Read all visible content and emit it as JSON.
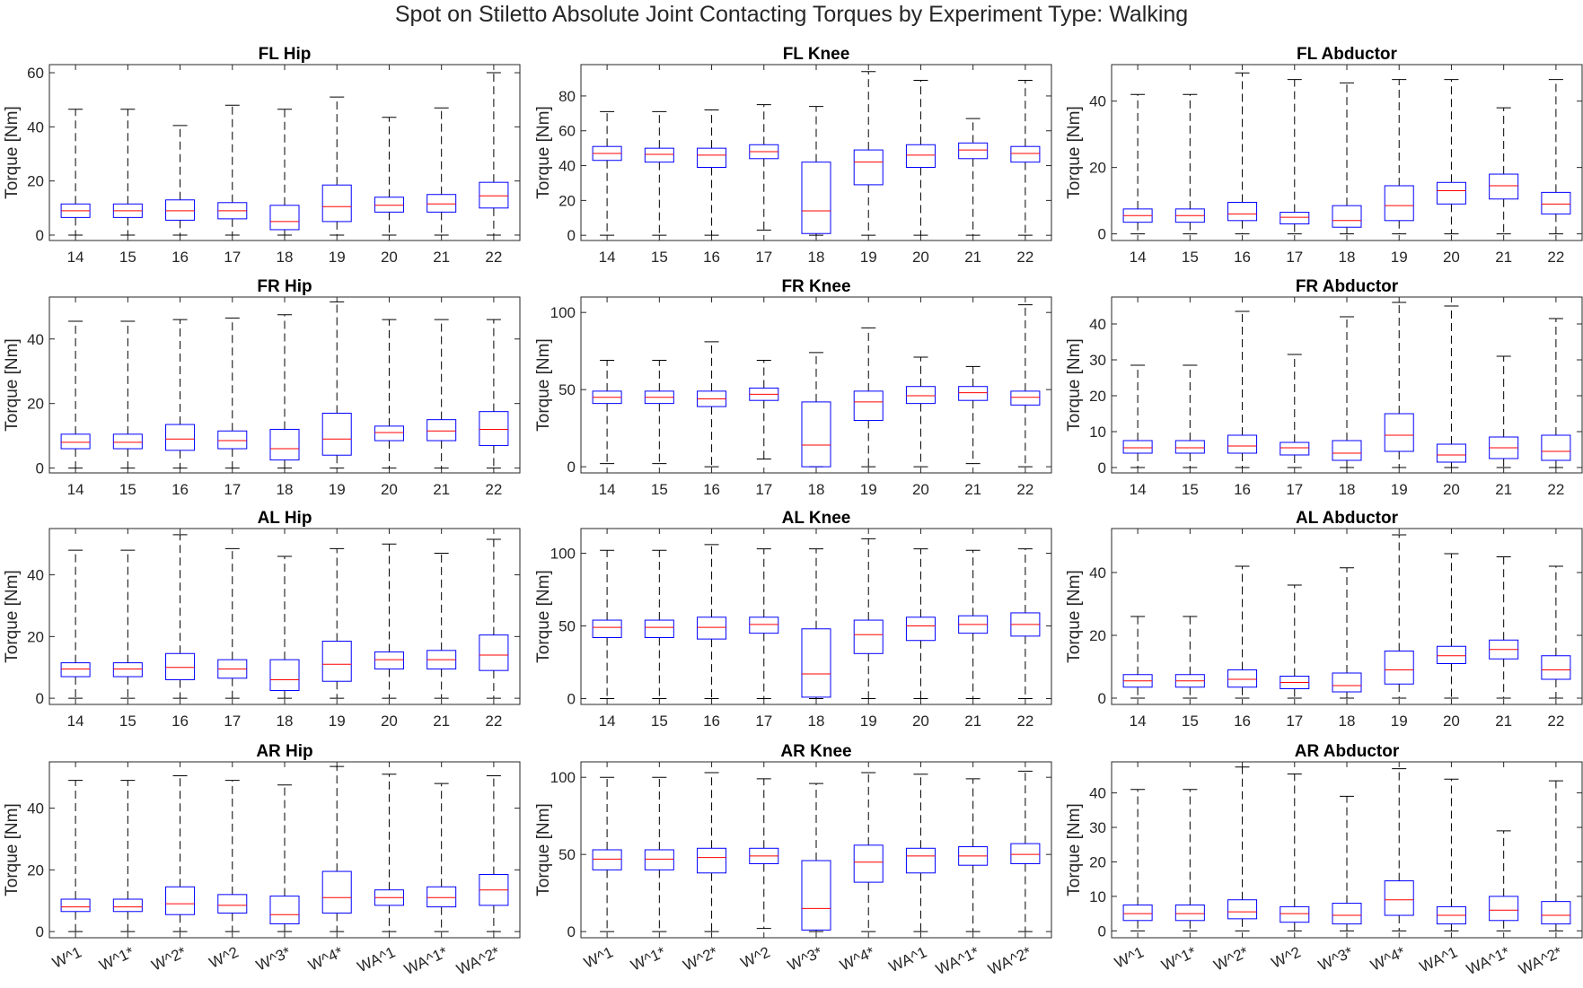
{
  "title": "Spot on Stiletto Absolute Joint Contacting Torques by Experiment Type: Walking",
  "colors": {
    "box": "#0000ff",
    "median": "#ff0000",
    "whisker": "#000000",
    "axis": "#262626"
  },
  "y_label": "Torque [Nm]",
  "chart_data": [
    {
      "type": "box",
      "title": "FL Hip",
      "ylabel": "Torque [Nm]",
      "categories": [
        "14",
        "15",
        "16",
        "17",
        "18",
        "19",
        "20",
        "21",
        "22"
      ],
      "ylim": [
        -2,
        63
      ],
      "yticks": [
        0,
        20,
        40,
        60
      ],
      "boxes": [
        {
          "min": 0,
          "q1": 6.5,
          "median": 9,
          "q3": 11.5,
          "max": 46.5
        },
        {
          "min": 0,
          "q1": 6.5,
          "median": 9,
          "q3": 11.5,
          "max": 46.5
        },
        {
          "min": 0,
          "q1": 5.5,
          "median": 9,
          "q3": 13,
          "max": 40.5
        },
        {
          "min": 0,
          "q1": 6,
          "median": 9,
          "q3": 12,
          "max": 48
        },
        {
          "min": 0,
          "q1": 2,
          "median": 5,
          "q3": 11,
          "max": 46.5
        },
        {
          "min": 0,
          "q1": 5,
          "median": 10.5,
          "q3": 18.5,
          "max": 51
        },
        {
          "min": 0,
          "q1": 8.5,
          "median": 11,
          "q3": 14,
          "max": 43.5
        },
        {
          "min": 0,
          "q1": 8.5,
          "median": 11.5,
          "q3": 15,
          "max": 47
        },
        {
          "min": 0,
          "q1": 10,
          "median": 14.5,
          "q3": 19.5,
          "max": 60
        }
      ]
    },
    {
      "type": "box",
      "title": "FL Knee",
      "ylabel": "Torque [Nm]",
      "categories": [
        "14",
        "15",
        "16",
        "17",
        "18",
        "19",
        "20",
        "21",
        "22"
      ],
      "ylim": [
        -3,
        98
      ],
      "yticks": [
        0,
        20,
        40,
        60,
        80
      ],
      "boxes": [
        {
          "min": 0,
          "q1": 43,
          "median": 47,
          "q3": 51,
          "max": 71
        },
        {
          "min": 0,
          "q1": 42,
          "median": 46.5,
          "q3": 50,
          "max": 71
        },
        {
          "min": 0,
          "q1": 39,
          "median": 46,
          "q3": 50,
          "max": 72
        },
        {
          "min": 3,
          "q1": 44,
          "median": 48,
          "q3": 52,
          "max": 75
        },
        {
          "min": 0,
          "q1": 1,
          "median": 14,
          "q3": 42,
          "max": 74
        },
        {
          "min": 0,
          "q1": 29,
          "median": 42,
          "q3": 49,
          "max": 94
        },
        {
          "min": 0,
          "q1": 39,
          "median": 46,
          "q3": 52,
          "max": 89
        },
        {
          "min": 0,
          "q1": 44,
          "median": 49,
          "q3": 53,
          "max": 67
        },
        {
          "min": 0,
          "q1": 42,
          "median": 47,
          "q3": 51,
          "max": 89
        }
      ]
    },
    {
      "type": "box",
      "title": "FL Abductor",
      "ylabel": "Torque [Nm]",
      "categories": [
        "14",
        "15",
        "16",
        "17",
        "18",
        "19",
        "20",
        "21",
        "22"
      ],
      "ylim": [
        -2,
        51
      ],
      "yticks": [
        0,
        20,
        40
      ],
      "boxes": [
        {
          "min": 0,
          "q1": 3.5,
          "median": 5.5,
          "q3": 7.5,
          "max": 42
        },
        {
          "min": 0,
          "q1": 3.5,
          "median": 5.5,
          "q3": 7.5,
          "max": 42
        },
        {
          "min": 0,
          "q1": 4,
          "median": 6,
          "q3": 9.5,
          "max": 48.5
        },
        {
          "min": 0,
          "q1": 3,
          "median": 5,
          "q3": 6.5,
          "max": 46.5
        },
        {
          "min": 0,
          "q1": 2,
          "median": 4,
          "q3": 8.5,
          "max": 45.5
        },
        {
          "min": 0,
          "q1": 4,
          "median": 8.5,
          "q3": 14.5,
          "max": 46.5
        },
        {
          "min": 0,
          "q1": 9,
          "median": 13,
          "q3": 15.5,
          "max": 46.5
        },
        {
          "min": 0,
          "q1": 10.5,
          "median": 14.5,
          "q3": 18,
          "max": 38
        },
        {
          "min": 0,
          "q1": 6,
          "median": 9,
          "q3": 12.5,
          "max": 46.5
        }
      ]
    },
    {
      "type": "box",
      "title": "FR Hip",
      "ylabel": "Torque [Nm]",
      "categories": [
        "14",
        "15",
        "16",
        "17",
        "18",
        "19",
        "20",
        "21",
        "22"
      ],
      "ylim": [
        -1.5,
        53
      ],
      "yticks": [
        0,
        20,
        40
      ],
      "boxes": [
        {
          "min": 0,
          "q1": 6,
          "median": 8,
          "q3": 10.5,
          "max": 45.5
        },
        {
          "min": 0,
          "q1": 6,
          "median": 8,
          "q3": 10.5,
          "max": 45.5
        },
        {
          "min": 0,
          "q1": 5.5,
          "median": 9,
          "q3": 13.5,
          "max": 46
        },
        {
          "min": 0,
          "q1": 6,
          "median": 8.5,
          "q3": 11.5,
          "max": 46.5
        },
        {
          "min": 0,
          "q1": 2.5,
          "median": 6,
          "q3": 12,
          "max": 47.5
        },
        {
          "min": 0,
          "q1": 4,
          "median": 9,
          "q3": 17,
          "max": 51.5
        },
        {
          "min": 0,
          "q1": 8.5,
          "median": 11,
          "q3": 13,
          "max": 46
        },
        {
          "min": 0,
          "q1": 8.5,
          "median": 11.5,
          "q3": 15,
          "max": 46
        },
        {
          "min": 0,
          "q1": 7,
          "median": 12,
          "q3": 17.5,
          "max": 46
        }
      ]
    },
    {
      "type": "box",
      "title": "FR Knee",
      "ylabel": "Torque [Nm]",
      "categories": [
        "14",
        "15",
        "16",
        "17",
        "18",
        "19",
        "20",
        "21",
        "22"
      ],
      "ylim": [
        -4,
        110
      ],
      "yticks": [
        0,
        50,
        100
      ],
      "boxes": [
        {
          "min": 2,
          "q1": 41,
          "median": 45,
          "q3": 49,
          "max": 69
        },
        {
          "min": 2,
          "q1": 41,
          "median": 45,
          "q3": 49,
          "max": 69
        },
        {
          "min": 0,
          "q1": 39,
          "median": 44,
          "q3": 49,
          "max": 81
        },
        {
          "min": 5,
          "q1": 43,
          "median": 47,
          "q3": 51,
          "max": 69
        },
        {
          "min": 0,
          "q1": 0,
          "median": 14,
          "q3": 42,
          "max": 74
        },
        {
          "min": 0,
          "q1": 30,
          "median": 42,
          "q3": 49,
          "max": 90
        },
        {
          "min": 0,
          "q1": 41,
          "median": 46,
          "q3": 52,
          "max": 71
        },
        {
          "min": 2,
          "q1": 43,
          "median": 48,
          "q3": 52,
          "max": 65
        },
        {
          "min": 0,
          "q1": 40,
          "median": 45,
          "q3": 49,
          "max": 105
        }
      ]
    },
    {
      "type": "box",
      "title": "FR Abductor",
      "ylabel": "Torque [Nm]",
      "categories": [
        "14",
        "15",
        "16",
        "17",
        "18",
        "19",
        "20",
        "21",
        "22"
      ],
      "ylim": [
        -1.5,
        47.5
      ],
      "yticks": [
        0,
        10,
        20,
        30,
        40
      ],
      "boxes": [
        {
          "min": 0,
          "q1": 4,
          "median": 5.5,
          "q3": 7.5,
          "max": 28.5
        },
        {
          "min": 0,
          "q1": 4,
          "median": 5.5,
          "q3": 7.5,
          "max": 28.5
        },
        {
          "min": 0,
          "q1": 4,
          "median": 6,
          "q3": 9,
          "max": 43.5
        },
        {
          "min": 0,
          "q1": 3.5,
          "median": 5.5,
          "q3": 7,
          "max": 31.5
        },
        {
          "min": 0,
          "q1": 2,
          "median": 4,
          "q3": 7.5,
          "max": 42
        },
        {
          "min": 0,
          "q1": 4.5,
          "median": 9,
          "q3": 15,
          "max": 46
        },
        {
          "min": 0,
          "q1": 1.5,
          "median": 3.5,
          "q3": 6.5,
          "max": 45
        },
        {
          "min": 0,
          "q1": 2.5,
          "median": 5.5,
          "q3": 8.5,
          "max": 31
        },
        {
          "min": 0,
          "q1": 2,
          "median": 4.5,
          "q3": 9,
          "max": 41.5
        }
      ]
    },
    {
      "type": "box",
      "title": "AL Hip",
      "ylabel": "Torque [Nm]",
      "categories": [
        "14",
        "15",
        "16",
        "17",
        "18",
        "19",
        "20",
        "21",
        "22"
      ],
      "ylim": [
        -2,
        55
      ],
      "yticks": [
        0,
        20,
        40
      ],
      "boxes": [
        {
          "min": 0,
          "q1": 7,
          "median": 9.5,
          "q3": 11.5,
          "max": 48
        },
        {
          "min": 0,
          "q1": 7,
          "median": 9.5,
          "q3": 11.5,
          "max": 48
        },
        {
          "min": 0,
          "q1": 6,
          "median": 10,
          "q3": 14.5,
          "max": 53
        },
        {
          "min": 0,
          "q1": 6.5,
          "median": 9.5,
          "q3": 12.5,
          "max": 48.5
        },
        {
          "min": 0,
          "q1": 2.5,
          "median": 6,
          "q3": 12.5,
          "max": 46
        },
        {
          "min": 0,
          "q1": 5.5,
          "median": 11,
          "q3": 18.5,
          "max": 48.5
        },
        {
          "min": 0,
          "q1": 9.5,
          "median": 12.5,
          "q3": 15,
          "max": 50
        },
        {
          "min": 0,
          "q1": 9.5,
          "median": 12.5,
          "q3": 15.5,
          "max": 47
        },
        {
          "min": 0,
          "q1": 9,
          "median": 14,
          "q3": 20.5,
          "max": 51.5
        }
      ]
    },
    {
      "type": "box",
      "title": "AL Knee",
      "ylabel": "Torque [Nm]",
      "categories": [
        "14",
        "15",
        "16",
        "17",
        "18",
        "19",
        "20",
        "21",
        "22"
      ],
      "ylim": [
        -4,
        117
      ],
      "yticks": [
        0,
        50,
        100
      ],
      "boxes": [
        {
          "min": 0,
          "q1": 42,
          "median": 49,
          "q3": 54,
          "max": 102
        },
        {
          "min": 0,
          "q1": 42,
          "median": 49,
          "q3": 54,
          "max": 102
        },
        {
          "min": 0,
          "q1": 41,
          "median": 49,
          "q3": 56,
          "max": 106
        },
        {
          "min": 0,
          "q1": 45,
          "median": 51,
          "q3": 56,
          "max": 103
        },
        {
          "min": 0,
          "q1": 1,
          "median": 17,
          "q3": 48,
          "max": 103
        },
        {
          "min": 0,
          "q1": 31,
          "median": 44,
          "q3": 54,
          "max": 110
        },
        {
          "min": 0,
          "q1": 40,
          "median": 50,
          "q3": 56,
          "max": 103
        },
        {
          "min": 0,
          "q1": 45,
          "median": 51,
          "q3": 57,
          "max": 102
        },
        {
          "min": 0,
          "q1": 43,
          "median": 51,
          "q3": 59,
          "max": 103
        }
      ]
    },
    {
      "type": "box",
      "title": "AL Abductor",
      "ylabel": "Torque [Nm]",
      "categories": [
        "14",
        "15",
        "16",
        "17",
        "18",
        "19",
        "20",
        "21",
        "22"
      ],
      "ylim": [
        -2,
        54
      ],
      "yticks": [
        0,
        20,
        40
      ],
      "boxes": [
        {
          "min": 0,
          "q1": 3.5,
          "median": 5.5,
          "q3": 7.5,
          "max": 26
        },
        {
          "min": 0,
          "q1": 3.5,
          "median": 5.5,
          "q3": 7.5,
          "max": 26
        },
        {
          "min": 0,
          "q1": 3.5,
          "median": 6,
          "q3": 9,
          "max": 42
        },
        {
          "min": 0,
          "q1": 3,
          "median": 5,
          "q3": 7,
          "max": 36
        },
        {
          "min": 0,
          "q1": 2,
          "median": 4,
          "q3": 8,
          "max": 41.5
        },
        {
          "min": 0,
          "q1": 4.5,
          "median": 9,
          "q3": 15,
          "max": 52
        },
        {
          "min": 0,
          "q1": 11,
          "median": 13.5,
          "q3": 16.5,
          "max": 46
        },
        {
          "min": 0,
          "q1": 12.5,
          "median": 15.5,
          "q3": 18.5,
          "max": 45
        },
        {
          "min": 0,
          "q1": 6,
          "median": 9,
          "q3": 13.5,
          "max": 42
        }
      ]
    },
    {
      "type": "box",
      "title": "AR Hip",
      "ylabel": "Torque [Nm]",
      "categories": [
        "W^1",
        "W^1*",
        "W^2*",
        "W^2",
        "W^3*",
        "W^4*",
        "WA^1",
        "WA^1*",
        "WA^2*"
      ],
      "ylim": [
        -2,
        55
      ],
      "yticks": [
        0,
        20,
        40
      ],
      "boxes": [
        {
          "min": 0,
          "q1": 6.5,
          "median": 8,
          "q3": 10.5,
          "max": 49
        },
        {
          "min": 0,
          "q1": 6.5,
          "median": 8,
          "q3": 10.5,
          "max": 49
        },
        {
          "min": 0,
          "q1": 5.5,
          "median": 9,
          "q3": 14.5,
          "max": 50.5
        },
        {
          "min": 0,
          "q1": 6,
          "median": 8.5,
          "q3": 12,
          "max": 49
        },
        {
          "min": 0,
          "q1": 2.5,
          "median": 5.5,
          "q3": 11.5,
          "max": 47.5
        },
        {
          "min": 0,
          "q1": 6,
          "median": 11,
          "q3": 19.5,
          "max": 53.5
        },
        {
          "min": 0,
          "q1": 8.5,
          "median": 11,
          "q3": 13.5,
          "max": 51
        },
        {
          "min": 0,
          "q1": 8,
          "median": 11,
          "q3": 14.5,
          "max": 48
        },
        {
          "min": 0,
          "q1": 8.5,
          "median": 13.5,
          "q3": 18.5,
          "max": 50.5
        }
      ]
    },
    {
      "type": "box",
      "title": "AR Knee",
      "ylabel": "Torque [Nm]",
      "categories": [
        "W^1",
        "W^1*",
        "W^2*",
        "W^2",
        "W^3*",
        "W^4*",
        "WA^1",
        "WA^1*",
        "WA^2*"
      ],
      "ylim": [
        -4,
        110
      ],
      "yticks": [
        0,
        50,
        100
      ],
      "boxes": [
        {
          "min": 0,
          "q1": 40,
          "median": 47,
          "q3": 53,
          "max": 100
        },
        {
          "min": 0,
          "q1": 40,
          "median": 47,
          "q3": 53,
          "max": 100
        },
        {
          "min": 0,
          "q1": 38,
          "median": 48,
          "q3": 54,
          "max": 103
        },
        {
          "min": 2,
          "q1": 44,
          "median": 49,
          "q3": 54,
          "max": 99
        },
        {
          "min": 0,
          "q1": 1,
          "median": 15,
          "q3": 46,
          "max": 96
        },
        {
          "min": 0,
          "q1": 32,
          "median": 45,
          "q3": 56,
          "max": 103
        },
        {
          "min": 0,
          "q1": 38,
          "median": 49,
          "q3": 54,
          "max": 102
        },
        {
          "min": 0,
          "q1": 43,
          "median": 49,
          "q3": 55,
          "max": 99
        },
        {
          "min": 0,
          "q1": 44,
          "median": 50,
          "q3": 57,
          "max": 104
        }
      ]
    },
    {
      "type": "box",
      "title": "AR Abductor",
      "ylabel": "Torque [Nm]",
      "categories": [
        "W^1",
        "W^1*",
        "W^2*",
        "W^2",
        "W^3*",
        "W^4*",
        "WA^1",
        "WA^1*",
        "WA^2*"
      ],
      "ylim": [
        -2,
        49
      ],
      "yticks": [
        0,
        10,
        20,
        30,
        40
      ],
      "boxes": [
        {
          "min": 0,
          "q1": 3,
          "median": 5,
          "q3": 7.5,
          "max": 41
        },
        {
          "min": 0,
          "q1": 3,
          "median": 5,
          "q3": 7.5,
          "max": 41
        },
        {
          "min": 0,
          "q1": 3.5,
          "median": 5.5,
          "q3": 9,
          "max": 47.5
        },
        {
          "min": 0,
          "q1": 2.5,
          "median": 5,
          "q3": 7,
          "max": 45.5
        },
        {
          "min": 0,
          "q1": 2,
          "median": 4.5,
          "q3": 8,
          "max": 39
        },
        {
          "min": 0,
          "q1": 4.5,
          "median": 9,
          "q3": 14.5,
          "max": 47
        },
        {
          "min": 0,
          "q1": 2,
          "median": 4.5,
          "q3": 7,
          "max": 44
        },
        {
          "min": 0,
          "q1": 3,
          "median": 6,
          "q3": 10,
          "max": 29
        },
        {
          "min": 0,
          "q1": 2,
          "median": 4.5,
          "q3": 8.5,
          "max": 43.5
        }
      ]
    }
  ]
}
